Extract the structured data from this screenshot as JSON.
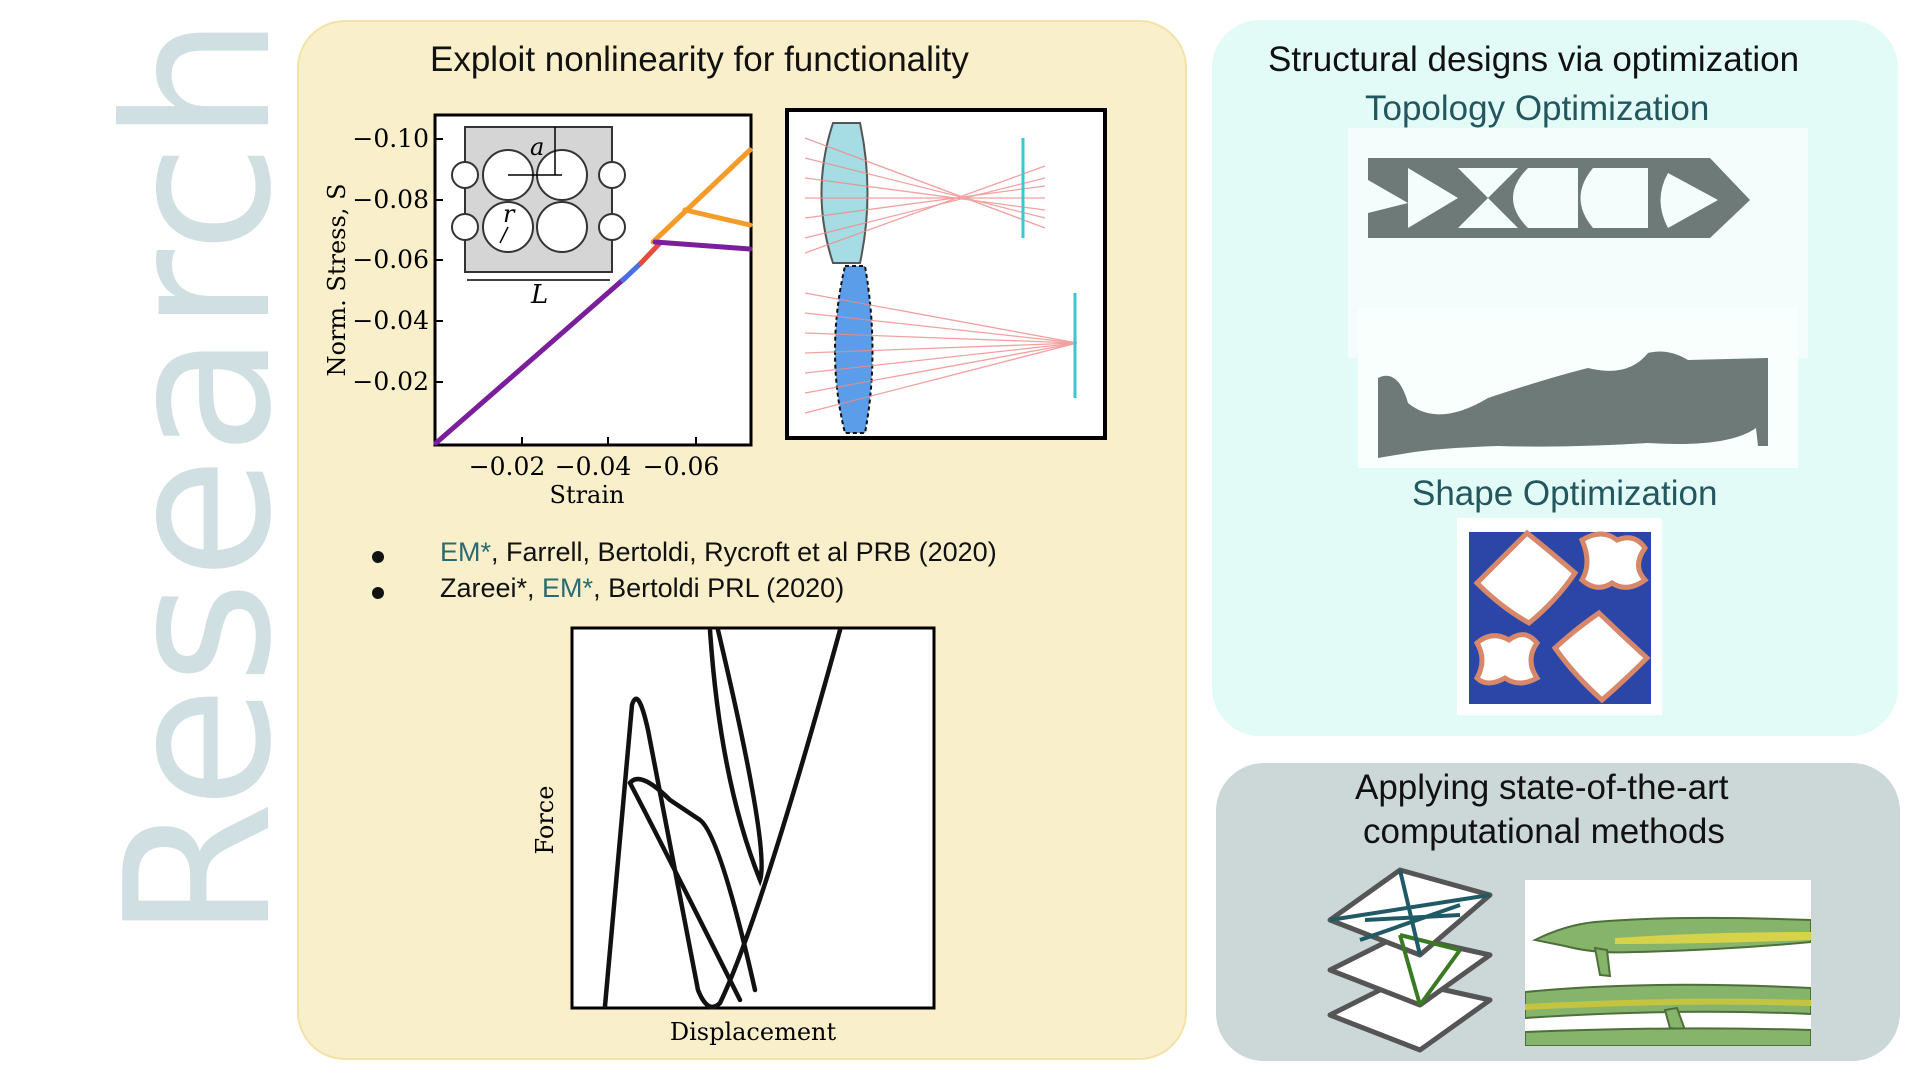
{
  "side_title": "Research",
  "nonlinearity": {
    "title": "Exploit nonlinearity for functionality",
    "stress_plot": {
      "ylabel": "Norm. Stress, S̃",
      "xlabel": "Strain",
      "yticks": [
        "−0.10",
        "−0.08",
        "−0.06",
        "−0.04",
        "−0.02"
      ],
      "xticks": [
        "−0.02",
        "−0.04",
        "−0.06"
      ],
      "inset_labels": {
        "a": "a",
        "r": "r",
        "L": "L"
      }
    },
    "refs": [
      {
        "hl": "EM*",
        "rest": ", Farrell, Bertoldi, Rycroft et al PRB (2020)"
      },
      {
        "pre": "Zareei*, ",
        "hl": "EM*",
        "rest": ", Bertoldi PRL (2020)"
      }
    ],
    "force_plot": {
      "ylabel": "Force",
      "xlabel": "Displacement"
    }
  },
  "optimization": {
    "title": "Structural designs via optimization",
    "topology_label": "Topology Optimization",
    "shape_label": "Shape Optimization"
  },
  "computational": {
    "title_line1": "Applying state-of-the-art",
    "title_line2": "computational methods"
  },
  "colors": {
    "nonlinearity_panel": "#f9efca",
    "optimization_panel": "#e3fbf6",
    "computational_panel": "#ccd8d8",
    "accent_teal": "#2a6a72",
    "side_title": "#d0dfe2"
  }
}
